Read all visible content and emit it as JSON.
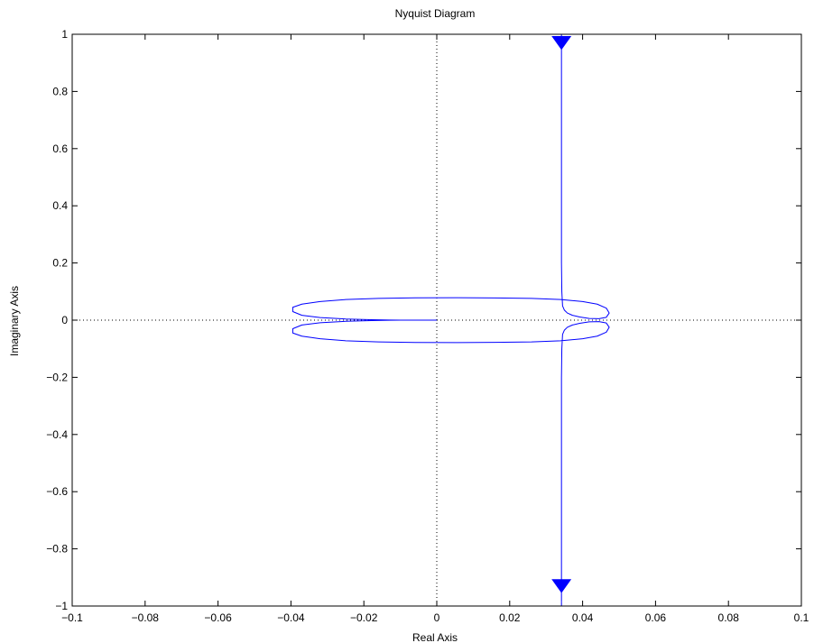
{
  "chart_data": {
    "type": "line",
    "title": "Nyquist Diagram",
    "xlabel": "Real Axis",
    "ylabel": "Imaginary Axis",
    "xlim": [
      -0.1,
      0.1
    ],
    "ylim": [
      -1,
      1
    ],
    "xticks": [
      -0.1,
      -0.08,
      -0.06,
      -0.04,
      -0.02,
      0,
      0.02,
      0.04,
      0.06,
      0.08,
      0.1
    ],
    "yticks": [
      -1,
      -0.8,
      -0.6,
      -0.4,
      -0.2,
      0,
      0.2,
      0.4,
      0.6,
      0.8,
      1
    ],
    "xtick_labels": [
      "−0.1",
      "−0.08",
      "−0.06",
      "−0.04",
      "−0.02",
      "0",
      "0.02",
      "0.04",
      "0.06",
      "0.08",
      "0.1"
    ],
    "ytick_labels": [
      "−1",
      "−0.8",
      "−0.6",
      "−0.4",
      "−0.2",
      "0",
      "0.2",
      "0.4",
      "0.6",
      "0.8",
      "1"
    ],
    "grid": false,
    "zero_lines": true,
    "line_color": "#0000ff",
    "series": [
      {
        "x": [
          0.0342,
          0.0342,
          0.0342,
          0.0342,
          0.0343,
          0.0345,
          0.035,
          0.0358,
          0.0372,
          0.0392,
          0.0418,
          0.0445,
          0.0465,
          0.0473,
          0.0465,
          0.044,
          0.04,
          0.034,
          0.026,
          0.016,
          0.005,
          -0.006,
          -0.016,
          -0.025,
          -0.032,
          -0.037,
          -0.0395,
          -0.0395,
          -0.037,
          -0.032,
          -0.025,
          -0.018,
          -0.013,
          -0.01,
          -0.006,
          -0.002,
          0.0
        ],
        "y": [
          0.985,
          0.8,
          0.5,
          0.2,
          0.1,
          0.05,
          0.035,
          0.025,
          0.017,
          0.011,
          0.006,
          0.005,
          0.01,
          0.025,
          0.042,
          0.056,
          0.065,
          0.072,
          0.076,
          0.0778,
          0.0785,
          0.078,
          0.076,
          0.072,
          0.065,
          0.056,
          0.045,
          0.03,
          0.017,
          0.009,
          0.004,
          0.0015,
          0.0005,
          0.0002,
          0.0001,
          0.0,
          0.0
        ]
      },
      {
        "x": [
          0.0342,
          0.0342,
          0.0342,
          0.0342,
          0.0343,
          0.0345,
          0.035,
          0.0358,
          0.0372,
          0.0392,
          0.0418,
          0.0445,
          0.0465,
          0.0473,
          0.0465,
          0.044,
          0.04,
          0.034,
          0.026,
          0.016,
          0.005,
          -0.006,
          -0.016,
          -0.025,
          -0.032,
          -0.037,
          -0.0395,
          -0.0395,
          -0.037,
          -0.032,
          -0.025,
          -0.018,
          -0.013,
          -0.01,
          -0.006,
          -0.002,
          0.0
        ],
        "y": [
          -0.985,
          -0.8,
          -0.5,
          -0.2,
          -0.1,
          -0.05,
          -0.035,
          -0.025,
          -0.017,
          -0.011,
          -0.006,
          -0.005,
          -0.01,
          -0.025,
          -0.042,
          -0.056,
          -0.065,
          -0.072,
          -0.076,
          -0.0778,
          -0.0785,
          -0.078,
          -0.076,
          -0.072,
          -0.065,
          -0.056,
          -0.045,
          -0.03,
          -0.017,
          -0.009,
          -0.004,
          -0.0015,
          -0.0005,
          -0.0002,
          -0.0001,
          0.0,
          0.0
        ]
      }
    ],
    "arrows": [
      {
        "x": 0.0342,
        "y": 0.97,
        "direction": "down"
      },
      {
        "x": 0.0342,
        "y": -0.93,
        "direction": "down"
      }
    ]
  }
}
